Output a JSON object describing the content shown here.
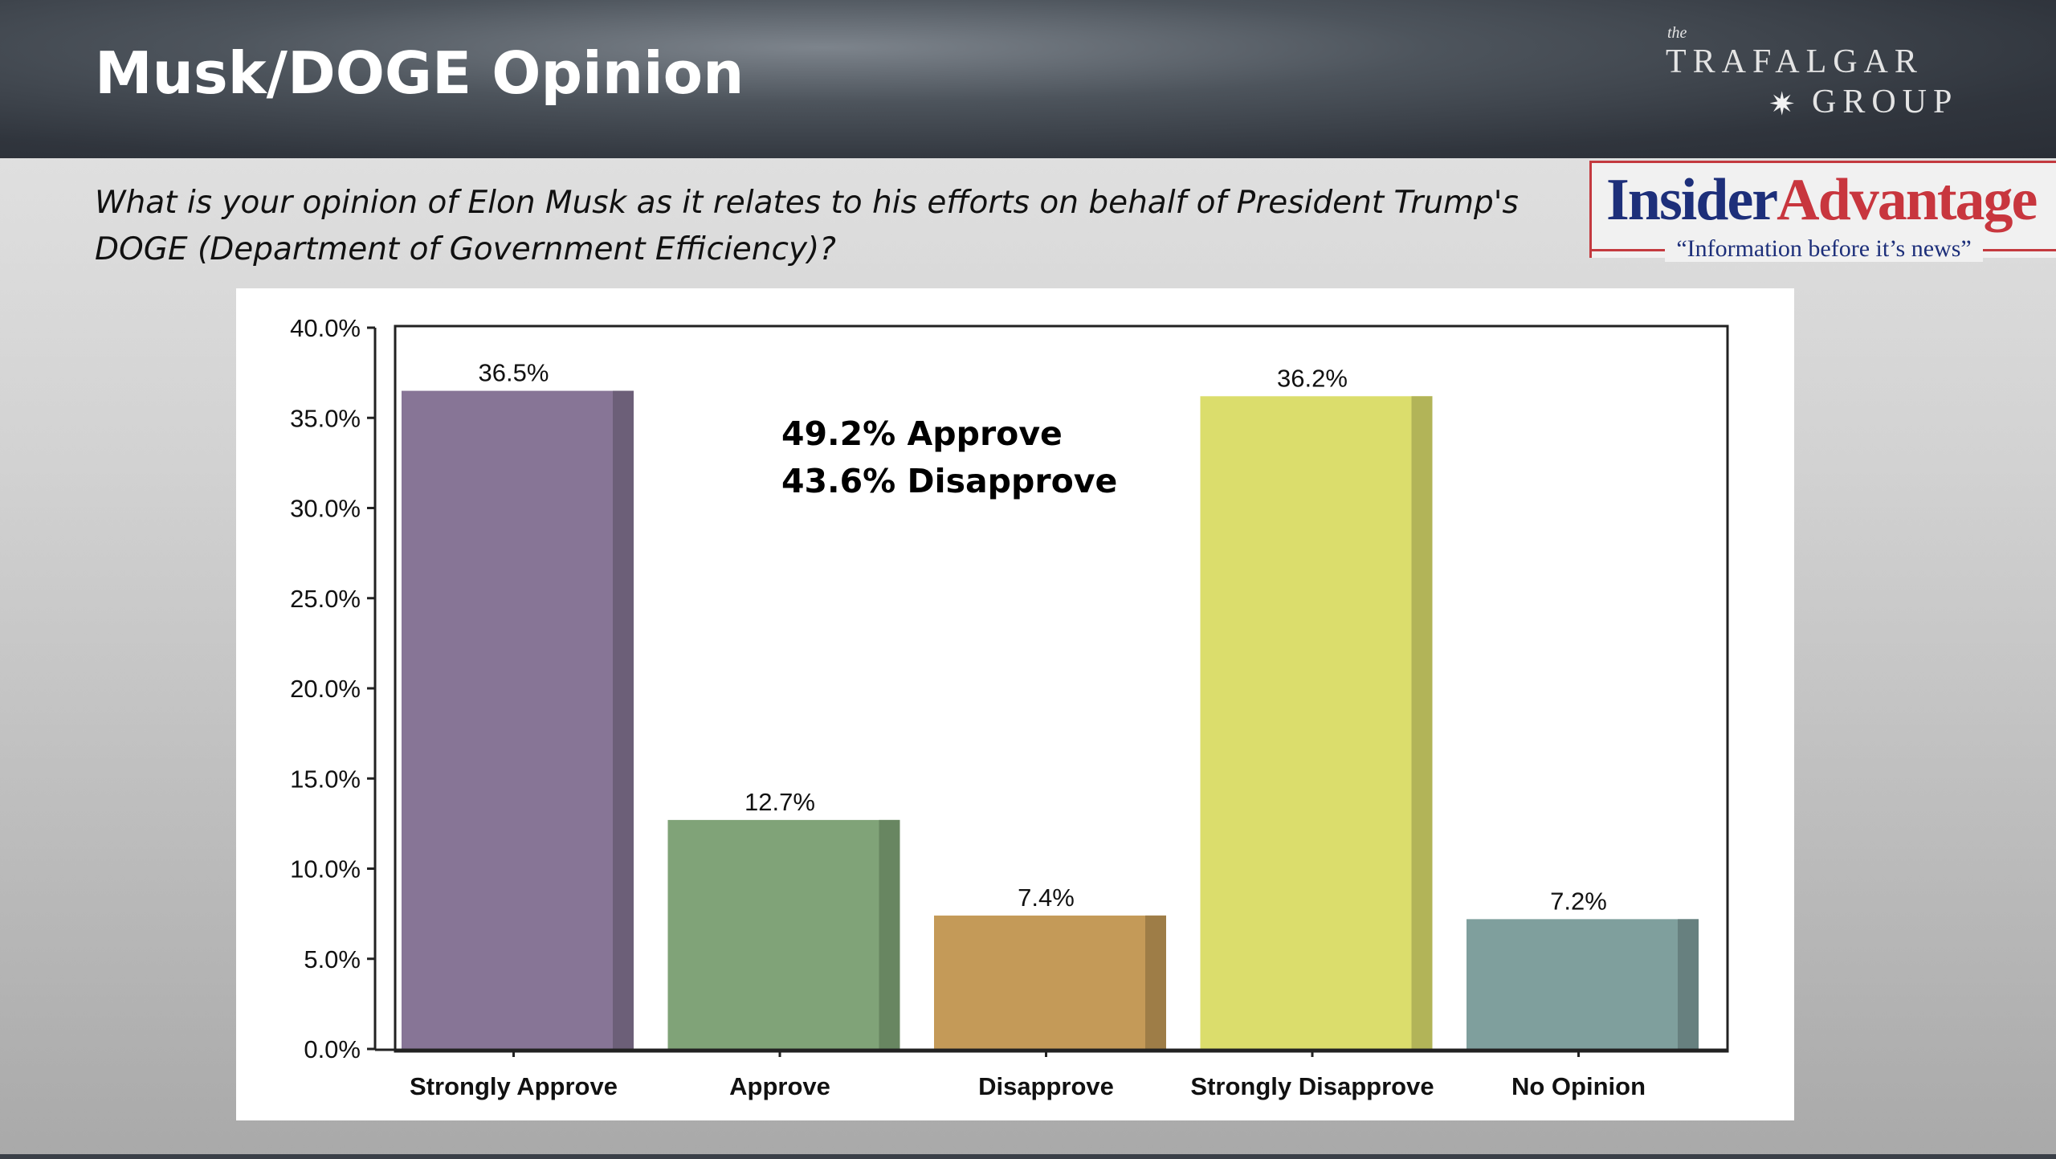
{
  "header": {
    "title": "Musk/DOGE Opinion"
  },
  "logos": {
    "trafalgar": {
      "small": "the",
      "line1": "TRAFALGAR",
      "line2": "GROUP"
    },
    "insider": {
      "part1": "Insider",
      "part2": "Advantage",
      "tagline": "“Information before it’s news”",
      "colors": {
        "blue": "#1d2f7a",
        "red": "#c8363e"
      }
    }
  },
  "question": "What is your opinion of Elon Musk as it relates to his efforts on behalf of President Trump's DOGE (Department of Government Efficiency)?",
  "chart_data": {
    "type": "bar",
    "categories": [
      "Strongly Approve",
      "Approve",
      "Disapprove",
      "Strongly Disapprove",
      "No Opinion"
    ],
    "values": [
      36.5,
      12.7,
      7.4,
      36.2,
      7.2
    ],
    "data_labels": [
      "36.5%",
      "12.7%",
      "7.4%",
      "36.2%",
      "7.2%"
    ],
    "colors": [
      "#877596",
      "#80a378",
      "#c49a58",
      "#dbdd6c",
      "#7f9f9d"
    ],
    "shade_colors": [
      "#6c5f78",
      "#688661",
      "#9e7d47",
      "#b2b458",
      "#67807f"
    ],
    "ylim": [
      0,
      40
    ],
    "yticks": [
      "0.0%",
      "5.0%",
      "10.0%",
      "15.0%",
      "20.0%",
      "25.0%",
      "30.0%",
      "35.0%",
      "40.0%"
    ],
    "annotations": [
      "49.2% Approve",
      "43.6% Disapprove"
    ],
    "grid": false,
    "legend": "none"
  }
}
